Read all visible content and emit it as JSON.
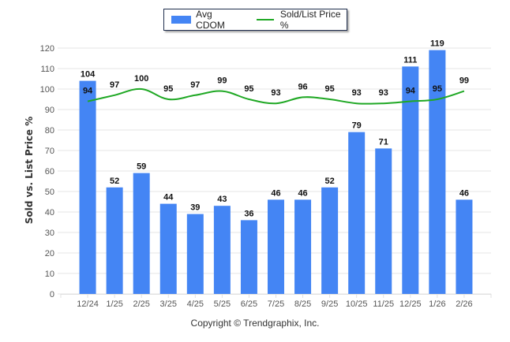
{
  "chart_data": {
    "type": "bar",
    "title": "",
    "categories": [
      "12/24",
      "1/25",
      "2/25",
      "3/25",
      "4/25",
      "5/25",
      "6/25",
      "7/25",
      "8/25",
      "9/25",
      "10/25",
      "11/25",
      "12/25",
      "1/26",
      "2/26"
    ],
    "series": [
      {
        "name": "Avg CDOM",
        "type": "bar",
        "color": "#4485F4",
        "values": [
          104,
          52,
          59,
          44,
          39,
          43,
          36,
          46,
          46,
          52,
          79,
          71,
          111,
          119,
          46
        ]
      },
      {
        "name": "Sold/List Price %",
        "type": "line",
        "color": "#1FA824",
        "values": [
          94,
          97,
          100,
          95,
          97,
          99,
          95,
          93,
          96,
          95,
          93,
          93,
          94,
          95,
          99
        ]
      }
    ],
    "ylabel": "Sold vs. List Price %",
    "xlabel": "",
    "ylim": [
      0,
      120
    ],
    "yticks": [
      0,
      10,
      20,
      30,
      40,
      50,
      60,
      70,
      80,
      90,
      100,
      110,
      120
    ],
    "grid": true,
    "legend_position": "top-center"
  },
  "footer": {
    "copyright": "Copyright © Trendgraphix, Inc."
  }
}
